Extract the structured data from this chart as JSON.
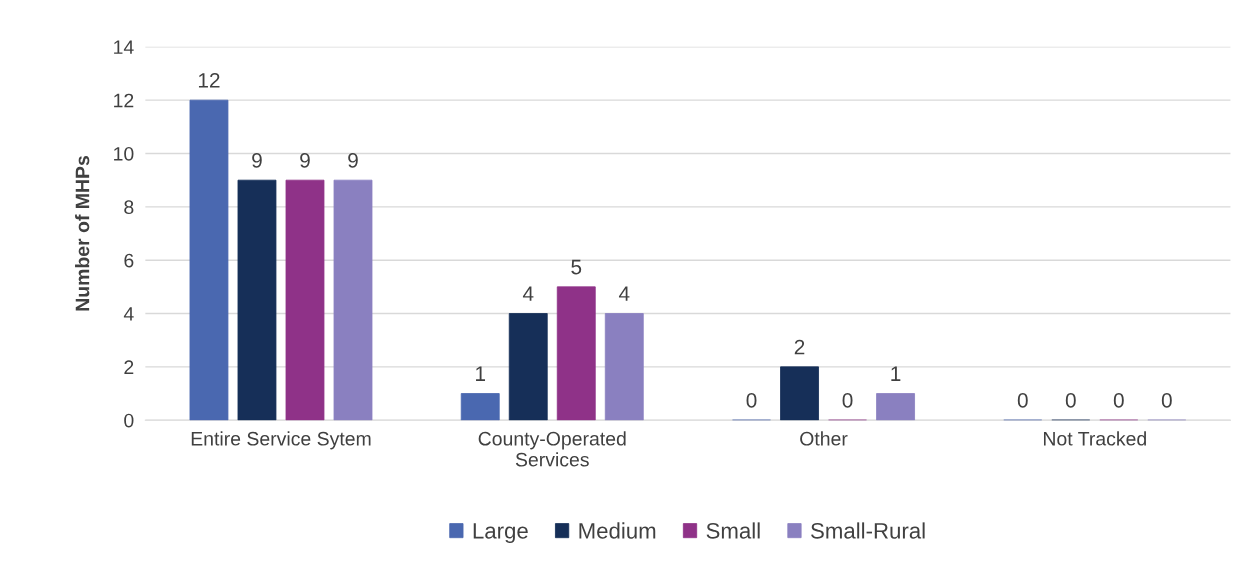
{
  "chart_data": {
    "type": "bar",
    "ylabel": "Number of MHPs",
    "categories": [
      "Entire Service Sytem",
      "County-Operated\nServices",
      "Other",
      "Not Tracked"
    ],
    "series": [
      {
        "name": "Large",
        "color": "#4a68b0",
        "values": [
          12,
          1,
          0,
          0
        ]
      },
      {
        "name": "Medium",
        "color": "#162f58",
        "values": [
          9,
          4,
          2,
          0
        ]
      },
      {
        "name": "Small",
        "color": "#8f3288",
        "values": [
          9,
          5,
          0,
          0
        ]
      },
      {
        "name": "Small-Rural",
        "color": "#8a80c0",
        "values": [
          9,
          4,
          1,
          0
        ]
      }
    ],
    "ylim": [
      0,
      14
    ],
    "yticks": [
      0,
      2,
      4,
      6,
      8,
      10,
      12,
      14
    ],
    "grid": "y",
    "legend": "bottom",
    "data_labels": true
  }
}
